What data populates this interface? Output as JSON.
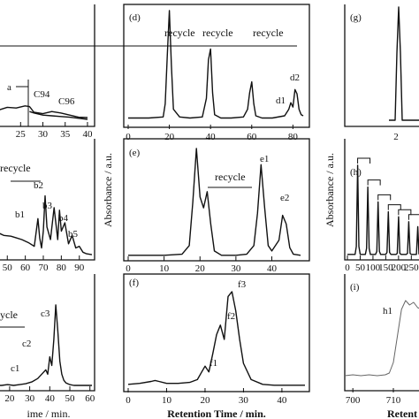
{
  "figure": {
    "left_column_xlabel": "ime / min.",
    "center_xlabel": "Retention Time / min.",
    "right_xlabel": "Retent",
    "center_ylabel": "Absorbance / a.u.",
    "right_ylabel": "Absorbance / a.u."
  },
  "chart_data": [
    {
      "id": "a-partial",
      "type": "line",
      "xticks": [
        25,
        30,
        35,
        40
      ],
      "xlim": [
        18,
        41
      ],
      "annotations": [
        "a",
        "C94",
        "C96"
      ],
      "series": [
        {
          "x": [
            18,
            20,
            22,
            24,
            26,
            27,
            28,
            30,
            32,
            34,
            36,
            38,
            40
          ],
          "y": [
            0.3,
            0.26,
            0.34,
            0.32,
            0.38,
            0.36,
            0.2,
            0.16,
            0.22,
            0.18,
            0.12,
            0.06,
            0.05
          ]
        },
        {
          "x": [
            27,
            28,
            30,
            32,
            34,
            36,
            38,
            40
          ],
          "y": [
            0.22,
            0.18,
            0.12,
            0.1,
            0.08,
            0.06,
            0.03,
            0.0
          ]
        }
      ]
    },
    {
      "id": "b-partial",
      "type": "line",
      "xticks": [
        50,
        60,
        70,
        80,
        90
      ],
      "xlim": [
        43,
        97
      ],
      "annotations": [
        "recycle",
        "b1",
        "b2",
        "b3",
        "b4",
        "b5"
      ],
      "series": [
        {
          "x": [
            43,
            45,
            48,
            52,
            55,
            58,
            62,
            65,
            67,
            68,
            69,
            70,
            71,
            72,
            74,
            76,
            78,
            79,
            80,
            82,
            84,
            86,
            88,
            90,
            92,
            94,
            97
          ],
          "y": [
            0.2,
            0.28,
            0.25,
            0.24,
            0.22,
            0.2,
            0.16,
            0.12,
            0.45,
            0.22,
            0.1,
            0.3,
            0.72,
            0.35,
            0.2,
            0.58,
            0.2,
            0.55,
            0.3,
            0.4,
            0.15,
            0.25,
            0.1,
            0.12,
            0.05,
            0.03,
            0.02
          ]
        }
      ]
    },
    {
      "id": "c-partial",
      "type": "line",
      "xticks": [
        20,
        30,
        40,
        50,
        60
      ],
      "xlim": [
        13,
        61
      ],
      "annotations": [
        "ycle",
        "c1",
        "c2",
        "c3"
      ],
      "series": [
        {
          "x": [
            13,
            16,
            19,
            22,
            25,
            28,
            31,
            34,
            36,
            38,
            39,
            40,
            41,
            42,
            43,
            44,
            45,
            46,
            47,
            48,
            50,
            52,
            55,
            58,
            61
          ],
          "y": [
            0.02,
            0.02,
            0.03,
            0.02,
            0.03,
            0.04,
            0.06,
            0.1,
            0.15,
            0.2,
            0.15,
            0.35,
            0.25,
            0.55,
            0.95,
            0.65,
            0.3,
            0.15,
            0.08,
            0.05,
            0.03,
            0.02,
            0.02,
            0.02,
            0.02
          ]
        }
      ]
    },
    {
      "id": "d",
      "type": "line",
      "xticks": [
        0,
        20,
        40,
        60,
        80
      ],
      "xlim": [
        0,
        85
      ],
      "annotations": [
        "(d)",
        "recycle",
        "recycle",
        "recycle",
        "d1",
        "d2"
      ],
      "series": [
        {
          "x": [
            0,
            10,
            17,
            18,
            19,
            20,
            21,
            22,
            25,
            30,
            36,
            38,
            39,
            40,
            41,
            42,
            45,
            50,
            56,
            58,
            59,
            60,
            61,
            62,
            65,
            70,
            76,
            78,
            79,
            80,
            81,
            82,
            83,
            84,
            85
          ],
          "y": [
            0.02,
            0.02,
            0.03,
            0.15,
            0.6,
            1.0,
            0.5,
            0.1,
            0.03,
            0.02,
            0.03,
            0.2,
            0.55,
            0.65,
            0.25,
            0.05,
            0.02,
            0.02,
            0.03,
            0.1,
            0.25,
            0.35,
            0.15,
            0.04,
            0.02,
            0.02,
            0.04,
            0.1,
            0.16,
            0.12,
            0.28,
            0.24,
            0.1,
            0.05,
            0.04
          ]
        }
      ]
    },
    {
      "id": "e",
      "type": "line",
      "xticks": [
        0,
        10,
        20,
        30,
        40
      ],
      "xlim": [
        0,
        48
      ],
      "annotations": [
        "(e)",
        "recycle",
        "e1",
        "e2"
      ],
      "series": [
        {
          "x": [
            0,
            5,
            10,
            15,
            17,
            18,
            19,
            20,
            21,
            22,
            23,
            24,
            26,
            30,
            33,
            35,
            36,
            37,
            38,
            39,
            40,
            42,
            43,
            44,
            45,
            46,
            48
          ],
          "y": [
            0.01,
            0.01,
            0.01,
            0.02,
            0.1,
            0.5,
            1.0,
            0.55,
            0.45,
            0.6,
            0.3,
            0.05,
            0.01,
            0.01,
            0.02,
            0.1,
            0.4,
            0.85,
            0.45,
            0.1,
            0.05,
            0.15,
            0.38,
            0.3,
            0.08,
            0.02,
            0.01
          ]
        }
      ]
    },
    {
      "id": "f",
      "type": "line",
      "xticks": [
        0,
        10,
        20,
        30,
        40
      ],
      "xlim": [
        0,
        46
      ],
      "annotations": [
        "(f)",
        "f1",
        "f2",
        "f3"
      ],
      "series": [
        {
          "x": [
            0,
            3,
            6,
            7,
            8,
            10,
            13,
            16,
            18,
            19,
            20,
            21,
            22,
            23,
            24,
            25,
            26,
            27,
            28,
            29,
            30,
            32,
            35,
            38,
            42,
            46
          ],
          "y": [
            0.03,
            0.04,
            0.06,
            0.07,
            0.06,
            0.04,
            0.04,
            0.05,
            0.08,
            0.15,
            0.22,
            0.16,
            0.35,
            0.55,
            0.65,
            0.5,
            0.95,
            1.0,
            0.8,
            0.5,
            0.25,
            0.08,
            0.03,
            0.02,
            0.02,
            0.02
          ]
        }
      ]
    },
    {
      "id": "g-partial",
      "type": "line",
      "xticks": [
        2
      ],
      "annotations": [
        "(g)"
      ],
      "series": []
    },
    {
      "id": "h-partial",
      "type": "line",
      "xticks": [
        0,
        50,
        100,
        150,
        200,
        250
      ],
      "xlim": [
        0,
        280
      ],
      "annotations": [
        "(h)"
      ],
      "series": [
        {
          "x": [
            0,
            5,
            10,
            15,
            20,
            25,
            30,
            35,
            40,
            45,
            50,
            55,
            60,
            65,
            70,
            75,
            80,
            85,
            90,
            95,
            100,
            105,
            110,
            115,
            120,
            125,
            130,
            135,
            140,
            145,
            150,
            155,
            160,
            165,
            170,
            175,
            180,
            185,
            190,
            195,
            200,
            205,
            210,
            215,
            220,
            225,
            230,
            235,
            240,
            245,
            250,
            255,
            260,
            265,
            270,
            275,
            280
          ],
          "y": [
            0.02,
            0.02,
            0.02,
            0.02,
            0.02,
            0.02,
            0.02,
            0.1,
            0.92,
            0.1,
            0.02,
            0.02,
            0.02,
            0.02,
            0.02,
            0.08,
            0.7,
            0.08,
            0.02,
            0.02,
            0.02,
            0.02,
            0.02,
            0.05,
            0.55,
            0.05,
            0.02,
            0.02,
            0.02,
            0.02,
            0.02,
            0.04,
            0.45,
            0.04,
            0.02,
            0.02,
            0.02,
            0.02,
            0.02,
            0.03,
            0.4,
            0.03,
            0.02,
            0.02,
            0.02,
            0.02,
            0.02,
            0.03,
            0.35,
            0.03,
            0.02,
            0.02,
            0.02,
            0.02,
            0.02,
            0.3,
            0.02
          ]
        }
      ]
    },
    {
      "id": "i-partial",
      "type": "line",
      "xticks": [
        700,
        710
      ],
      "xlim": [
        698,
        722
      ],
      "annotations": [
        "(i)",
        "h1"
      ],
      "series": [
        {
          "x": [
            698,
            700,
            702,
            704,
            706,
            708,
            709,
            710,
            711,
            712,
            713,
            714,
            715,
            716,
            717,
            718,
            720,
            722
          ],
          "y": [
            0.05,
            0.06,
            0.05,
            0.06,
            0.05,
            0.06,
            0.08,
            0.2,
            0.5,
            0.8,
            0.9,
            0.85,
            0.88,
            0.82,
            0.8,
            0.75,
            0.7,
            0.68
          ]
        }
      ]
    }
  ]
}
